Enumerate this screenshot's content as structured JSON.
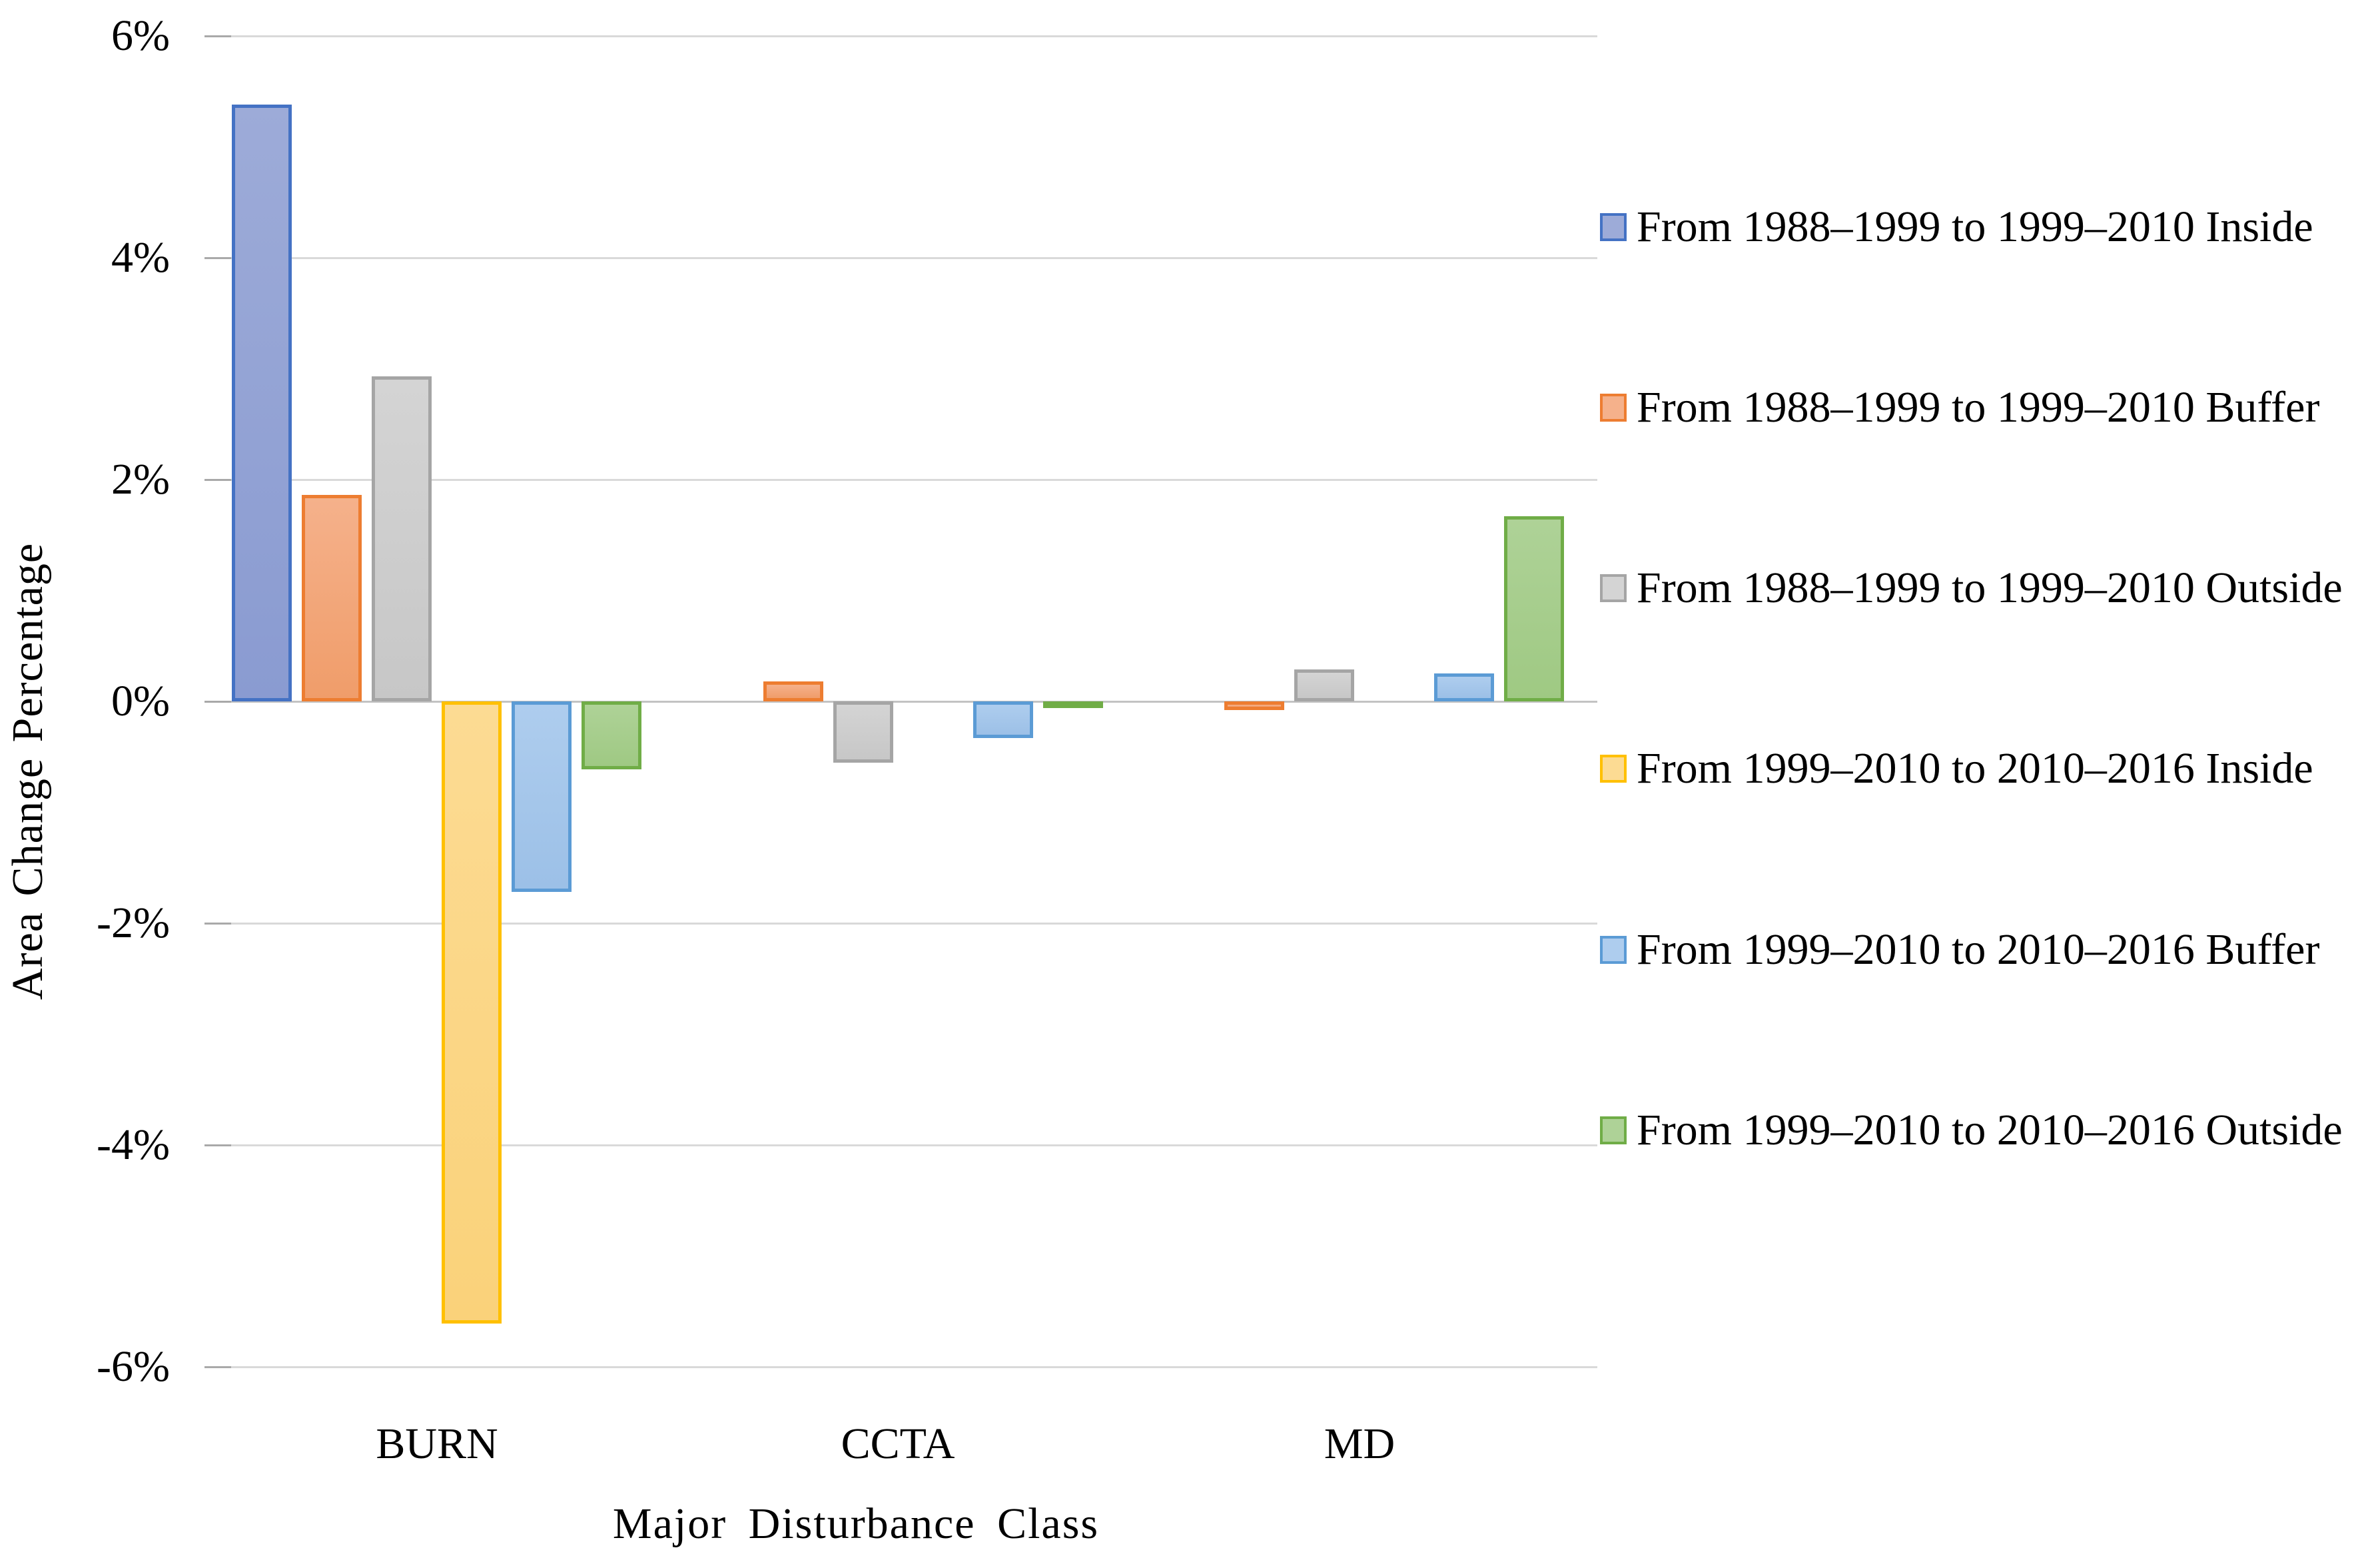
{
  "chart_data": {
    "type": "bar",
    "title": "",
    "xlabel": "Major Disturbance Class",
    "ylabel": "Area Change Percentage",
    "categories": [
      "BURN",
      "CCTA",
      "MD"
    ],
    "series": [
      {
        "name": "From 1988–1999 to 1999–2010 Inside",
        "values": [
          5.38,
          0,
          0
        ],
        "fill": "#9dabd8",
        "fill2": "#8a9bd1",
        "border": "#4472c4"
      },
      {
        "name": "From 1988–1999 to 1999–2010 Buffer",
        "values": [
          1.86,
          0.18,
          -0.08
        ],
        "fill": "#f5b18b",
        "fill2": "#f09d6a",
        "border": "#ed7d31"
      },
      {
        "name": "From 1988–1999 to 1999–2010 Outside",
        "values": [
          2.93,
          -0.55,
          0.29
        ],
        "fill": "#d4d4d4",
        "fill2": "#c7c7c7",
        "border": "#a5a5a5"
      },
      {
        "name": "From 1999–2010 to 2010–2016 Inside",
        "values": [
          -5.61,
          0,
          0
        ],
        "fill": "#fcdb93",
        "fill2": "#fad27a",
        "border": "#ffc000"
      },
      {
        "name": "From 1999–2010 to 2010–2016 Buffer",
        "values": [
          -1.72,
          -0.33,
          0.25
        ],
        "fill": "#aecdee",
        "fill2": "#9cc0e7",
        "border": "#5b9bd5"
      },
      {
        "name": "From 1999–2010 to 2010–2016 Outside",
        "values": [
          -0.61,
          -0.06,
          1.67
        ],
        "fill": "#aed297",
        "fill2": "#9fc983",
        "border": "#70ad47"
      }
    ],
    "yticks": [
      {
        "label": "6%",
        "value": 6
      },
      {
        "label": "4%",
        "value": 4
      },
      {
        "label": "2%",
        "value": 2
      },
      {
        "label": "0%",
        "value": 0
      },
      {
        "label": "-2%",
        "value": -2
      },
      {
        "label": "-4%",
        "value": -4
      },
      {
        "label": "-6%",
        "value": -6
      }
    ],
    "ylim": [
      -6,
      6
    ],
    "grid": true,
    "legend_position": "right"
  }
}
